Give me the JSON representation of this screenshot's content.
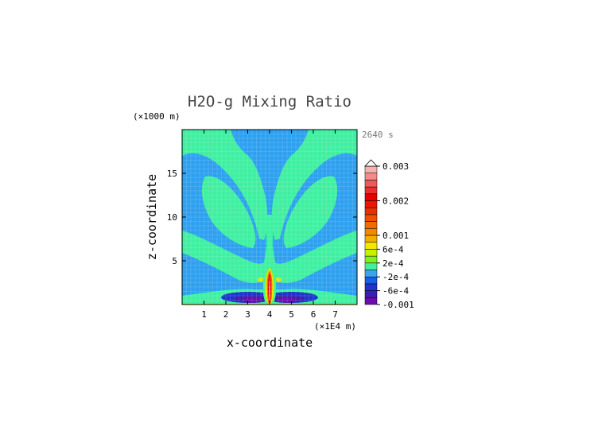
{
  "chart_data": {
    "type": "heatmap",
    "title": "H2O-g Mixing Ratio",
    "timestamp": "2640 s",
    "xlabel": "x-coordinate",
    "ylabel": "z-coordinate",
    "x_scale_label": "(×1E4 m)",
    "y_scale_label": "(×1000 m)",
    "xlim": [
      0,
      8
    ],
    "ylim": [
      0,
      20
    ],
    "x_ticks": [
      1,
      2,
      3,
      4,
      5,
      6,
      7
    ],
    "y_ticks": [
      5,
      10,
      15
    ],
    "colorbar": {
      "levels": [
        -0.001,
        -0.0008,
        -0.0006,
        -0.0004,
        -0.0002,
        0,
        0.0002,
        0.0004,
        0.0006,
        0.0008,
        0.001,
        0.0012,
        0.0014,
        0.0016,
        0.0018,
        0.002,
        0.0022,
        0.0024,
        0.0026,
        0.0028,
        0.003
      ],
      "colors": [
        "#6a0dad",
        "#3a1fb0",
        "#2233cc",
        "#1560e6",
        "#3aa4f0",
        "#44f0a0",
        "#80f020",
        "#c8f000",
        "#f0e800",
        "#f0b000",
        "#f08800",
        "#f06a00",
        "#f05000",
        "#e83000",
        "#e81800",
        "#e80000",
        "#e83030",
        "#ee5a5a",
        "#f48a8a",
        "#f8b0b0"
      ],
      "tick_labels": [
        {
          "value": 0.003,
          "label": "0.003"
        },
        {
          "value": 0.002,
          "label": "0.002"
        },
        {
          "value": 0.001,
          "label": "0.001"
        },
        {
          "value": 0.0006,
          "label": "6e-4"
        },
        {
          "value": 0.0002,
          "label": "2e-4"
        },
        {
          "value": -0.0002,
          "label": "-2e-4"
        },
        {
          "value": -0.0006,
          "label": "-6e-4"
        },
        {
          "value": -0.001,
          "label": "-0.001"
        }
      ]
    }
  },
  "colors": {
    "background_field": "#2ea0f0",
    "band_field": "#3ef0a0",
    "ground_line": "#80f020",
    "axis": "#000000",
    "title_text": "#444444",
    "timestamp_text": "#777777"
  }
}
